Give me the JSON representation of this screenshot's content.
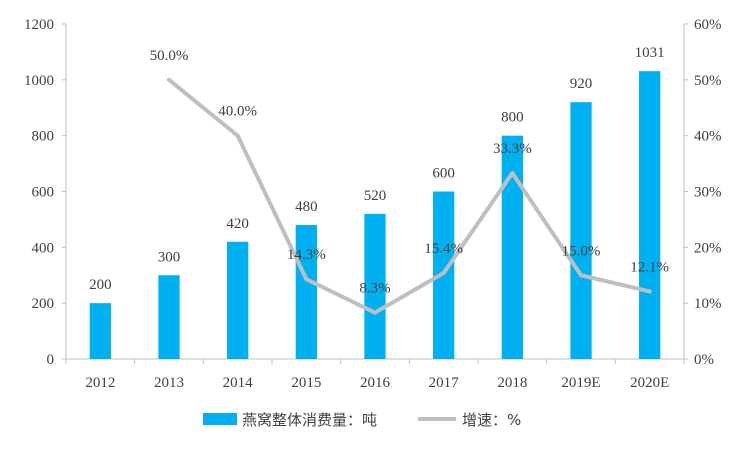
{
  "chart_data": {
    "type": "bar",
    "categories": [
      "2012",
      "2013",
      "2014",
      "2015",
      "2016",
      "2017",
      "2018",
      "2019E",
      "2020E"
    ],
    "series": [
      {
        "name": "燕窝整体消费量：吨",
        "type": "bar",
        "axis": "left",
        "values": [
          200,
          300,
          420,
          480,
          520,
          600,
          800,
          920,
          1031
        ],
        "labels": [
          "200",
          "300",
          "420",
          "480",
          "520",
          "600",
          "800",
          "920",
          "1031"
        ],
        "color": "#00B0F0"
      },
      {
        "name": "增速：%",
        "type": "line",
        "axis": "right",
        "values": [
          null,
          50.0,
          40.0,
          14.3,
          8.3,
          15.4,
          33.3,
          15.0,
          12.1
        ],
        "labels": [
          "",
          "50.0%",
          "40.0%",
          "14.3%",
          "8.3%",
          "15.4%",
          "33.3%",
          "15.0%",
          "12.1%"
        ],
        "color": "#BFBFBF"
      }
    ],
    "y_left": {
      "min": 0,
      "max": 1200,
      "ticks": [
        "0",
        "200",
        "400",
        "600",
        "800",
        "1000",
        "1200"
      ]
    },
    "y_right": {
      "min": 0,
      "max": 60,
      "ticks": [
        "0%",
        "10%",
        "20%",
        "30%",
        "40%",
        "50%",
        "60%"
      ]
    },
    "grid": false,
    "legend_position": "bottom"
  }
}
